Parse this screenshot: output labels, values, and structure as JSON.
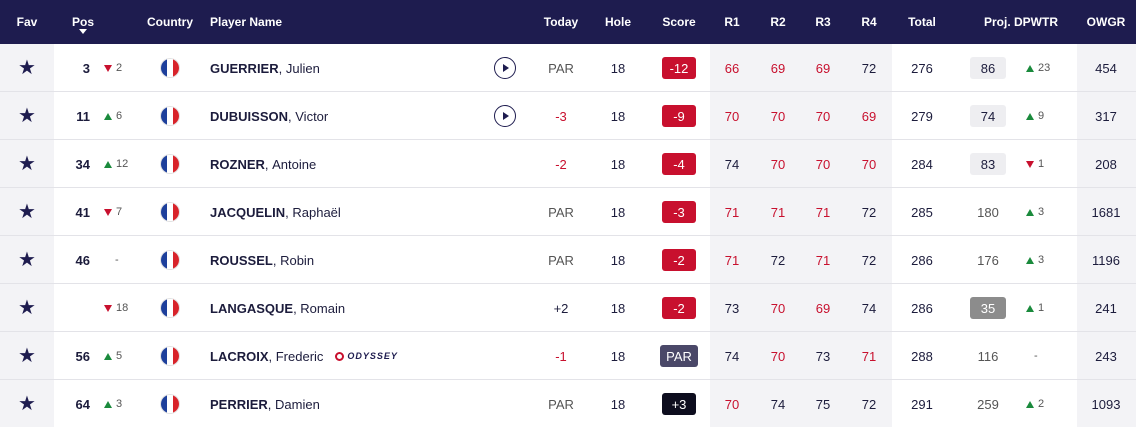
{
  "header": {
    "fav": "Fav",
    "pos": "Pos",
    "country": "Country",
    "player": "Player Name",
    "today": "Today",
    "hole": "Hole",
    "score": "Score",
    "r1": "R1",
    "r2": "R2",
    "r3": "R3",
    "r4": "R4",
    "total": "Total",
    "proj": "Proj. DPWTR",
    "owgr": "OWGR"
  },
  "colors": {
    "navy": "#1e1c4f",
    "red": "#c8102e",
    "green": "#1a8a3c",
    "grey_badge": "#8c8c8c",
    "black_badge": "#0d0d1e",
    "par_badge": "#4a4868"
  },
  "rows": [
    {
      "pos": "3",
      "move": {
        "dir": "down",
        "val": "2"
      },
      "last": "GUERRIER",
      "first": "Julien",
      "play": true,
      "sponsor": "",
      "today": "PAR",
      "today_color": "grey",
      "hole": "18",
      "score": "-12",
      "score_bg": "#c8102e",
      "r": [
        "66",
        "69",
        "69",
        "72"
      ],
      "r_color": [
        "red",
        "red",
        "red",
        "dark"
      ],
      "total": "276",
      "proj": "86",
      "proj_box": "light",
      "pmove": {
        "dir": "up",
        "val": "23"
      },
      "owgr": "454"
    },
    {
      "pos": "11",
      "move": {
        "dir": "up",
        "val": "6"
      },
      "last": "DUBUISSON",
      "first": "Victor",
      "play": true,
      "sponsor": "",
      "today": "-3",
      "today_color": "red",
      "hole": "18",
      "score": "-9",
      "score_bg": "#c8102e",
      "r": [
        "70",
        "70",
        "70",
        "69"
      ],
      "r_color": [
        "red",
        "red",
        "red",
        "red"
      ],
      "total": "279",
      "proj": "74",
      "proj_box": "light",
      "pmove": {
        "dir": "up",
        "val": "9"
      },
      "owgr": "317"
    },
    {
      "pos": "34",
      "move": {
        "dir": "up",
        "val": "12"
      },
      "last": "ROZNER",
      "first": "Antoine",
      "play": false,
      "sponsor": "",
      "today": "-2",
      "today_color": "red",
      "hole": "18",
      "score": "-4",
      "score_bg": "#c8102e",
      "r": [
        "74",
        "70",
        "70",
        "70"
      ],
      "r_color": [
        "dark",
        "red",
        "red",
        "red"
      ],
      "total": "284",
      "proj": "83",
      "proj_box": "light",
      "pmove": {
        "dir": "down",
        "val": "1"
      },
      "owgr": "208"
    },
    {
      "pos": "41",
      "move": {
        "dir": "down",
        "val": "7"
      },
      "last": "JACQUELIN",
      "first": "Raphaël",
      "play": false,
      "sponsor": "",
      "today": "PAR",
      "today_color": "grey",
      "hole": "18",
      "score": "-3",
      "score_bg": "#c8102e",
      "r": [
        "71",
        "71",
        "71",
        "72"
      ],
      "r_color": [
        "red",
        "red",
        "red",
        "dark"
      ],
      "total": "285",
      "proj": "180",
      "proj_box": "none",
      "pmove": {
        "dir": "up",
        "val": "3"
      },
      "owgr": "1681"
    },
    {
      "pos": "46",
      "move": {
        "dir": "none",
        "val": "-"
      },
      "last": "ROUSSEL",
      "first": "Robin",
      "play": false,
      "sponsor": "",
      "today": "PAR",
      "today_color": "grey",
      "hole": "18",
      "score": "-2",
      "score_bg": "#c8102e",
      "r": [
        "71",
        "72",
        "71",
        "72"
      ],
      "r_color": [
        "red",
        "dark",
        "red",
        "dark"
      ],
      "total": "286",
      "proj": "176",
      "proj_box": "none",
      "pmove": {
        "dir": "up",
        "val": "3"
      },
      "owgr": "1196"
    },
    {
      "pos": "",
      "move": {
        "dir": "down",
        "val": "18"
      },
      "last": "LANGASQUE",
      "first": "Romain",
      "play": false,
      "sponsor": "",
      "today": "+2",
      "today_color": "dark",
      "hole": "18",
      "score": "-2",
      "score_bg": "#c8102e",
      "r": [
        "73",
        "70",
        "69",
        "74"
      ],
      "r_color": [
        "dark",
        "red",
        "red",
        "dark"
      ],
      "total": "286",
      "proj": "35",
      "proj_box": "grey",
      "pmove": {
        "dir": "up",
        "val": "1"
      },
      "owgr": "241"
    },
    {
      "pos": "56",
      "move": {
        "dir": "up",
        "val": "5"
      },
      "last": "LACROIX",
      "first": "Frederic",
      "play": false,
      "sponsor": "ODYSSEY",
      "today": "-1",
      "today_color": "red",
      "hole": "18",
      "score": "PAR",
      "score_bg": "#4a4868",
      "r": [
        "74",
        "70",
        "73",
        "71"
      ],
      "r_color": [
        "dark",
        "red",
        "dark",
        "red"
      ],
      "total": "288",
      "proj": "116",
      "proj_box": "none",
      "pmove": {
        "dir": "none",
        "val": "-"
      },
      "owgr": "243"
    },
    {
      "pos": "64",
      "move": {
        "dir": "up",
        "val": "3"
      },
      "last": "PERRIER",
      "first": "Damien",
      "play": false,
      "sponsor": "",
      "today": "PAR",
      "today_color": "grey",
      "hole": "18",
      "score": "+3",
      "score_bg": "#0d0d1e",
      "r": [
        "70",
        "74",
        "75",
        "72"
      ],
      "r_color": [
        "red",
        "dark",
        "dark",
        "dark"
      ],
      "total": "291",
      "proj": "259",
      "proj_box": "none",
      "pmove": {
        "dir": "up",
        "val": "2"
      },
      "owgr": "1093"
    }
  ]
}
